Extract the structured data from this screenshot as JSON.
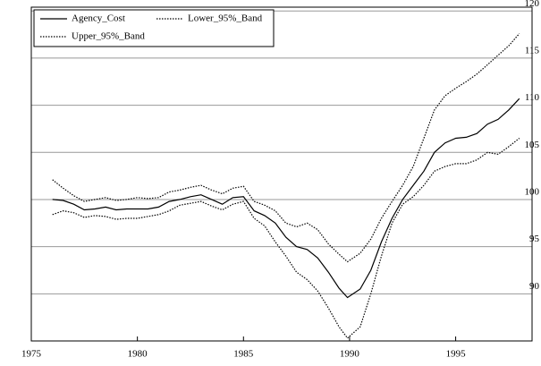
{
  "chart_data": {
    "type": "line",
    "x": [
      1976,
      1976.5,
      1977,
      1977.5,
      1978,
      1978.5,
      1979,
      1979.5,
      1980,
      1980.5,
      1981,
      1981.5,
      1982,
      1982.5,
      1983,
      1983.5,
      1984,
      1984.5,
      1985,
      1985.5,
      1986,
      1986.5,
      1987,
      1987.5,
      1988,
      1988.5,
      1989,
      1989.5,
      1989.9,
      1990.5,
      1991,
      1991.5,
      1992,
      1992.5,
      1993,
      1993.5,
      1994,
      1994.5,
      1995,
      1995.5,
      1996,
      1996.5,
      1997,
      1997.5,
      1998
    ],
    "series": [
      {
        "name": "Agency_Cost",
        "color": "#000000",
        "style": "solid",
        "values": [
          100.0,
          99.9,
          99.5,
          98.9,
          99.0,
          99.2,
          98.9,
          99.0,
          99.0,
          99.0,
          99.2,
          99.8,
          100.0,
          100.3,
          100.5,
          100.0,
          99.5,
          100.2,
          100.3,
          98.8,
          98.3,
          97.5,
          96.0,
          95.0,
          94.7,
          93.8,
          92.3,
          90.6,
          89.6,
          90.5,
          92.5,
          95.5,
          98.0,
          100.0,
          101.5,
          103.0,
          105.0,
          106.0,
          106.5,
          106.6,
          107.0,
          108.0,
          108.5,
          109.5,
          110.7
        ]
      },
      {
        "name": "Lower_95%_Band",
        "color": "#000000",
        "style": "dotted",
        "values": [
          98.4,
          98.8,
          98.6,
          98.1,
          98.3,
          98.2,
          97.9,
          98.0,
          98.0,
          98.2,
          98.4,
          98.8,
          99.4,
          99.6,
          99.8,
          99.3,
          98.9,
          99.5,
          99.8,
          98.0,
          97.2,
          95.5,
          94.0,
          92.3,
          91.5,
          90.3,
          88.5,
          86.5,
          85.3,
          86.5,
          90.0,
          94.0,
          97.5,
          99.5,
          100.3,
          101.5,
          103.0,
          103.5,
          103.8,
          103.8,
          104.2,
          105.0,
          104.8,
          105.6,
          106.5
        ]
      },
      {
        "name": "Upper_95%_Band",
        "color": "#000000",
        "style": "dotted",
        "values": [
          102.1,
          101.2,
          100.4,
          99.8,
          100.0,
          100.2,
          99.9,
          100.0,
          100.2,
          100.1,
          100.2,
          100.8,
          101.0,
          101.3,
          101.5,
          101.0,
          100.6,
          101.2,
          101.4,
          99.8,
          99.4,
          98.8,
          97.5,
          97.1,
          97.5,
          96.8,
          95.3,
          94.2,
          93.4,
          94.3,
          95.8,
          98.0,
          99.8,
          101.5,
          103.5,
          106.5,
          109.5,
          111.0,
          111.8,
          112.5,
          113.3,
          114.3,
          115.3,
          116.3,
          117.6
        ]
      }
    ],
    "xlim": [
      1975,
      1998.6
    ],
    "xticks": [
      1975,
      1980,
      1985,
      1990,
      1995
    ],
    "ylim": [
      85,
      120.4
    ],
    "yticks": [
      90,
      95,
      100,
      105,
      110,
      115,
      120
    ],
    "grid": true,
    "legend": "top-left"
  }
}
